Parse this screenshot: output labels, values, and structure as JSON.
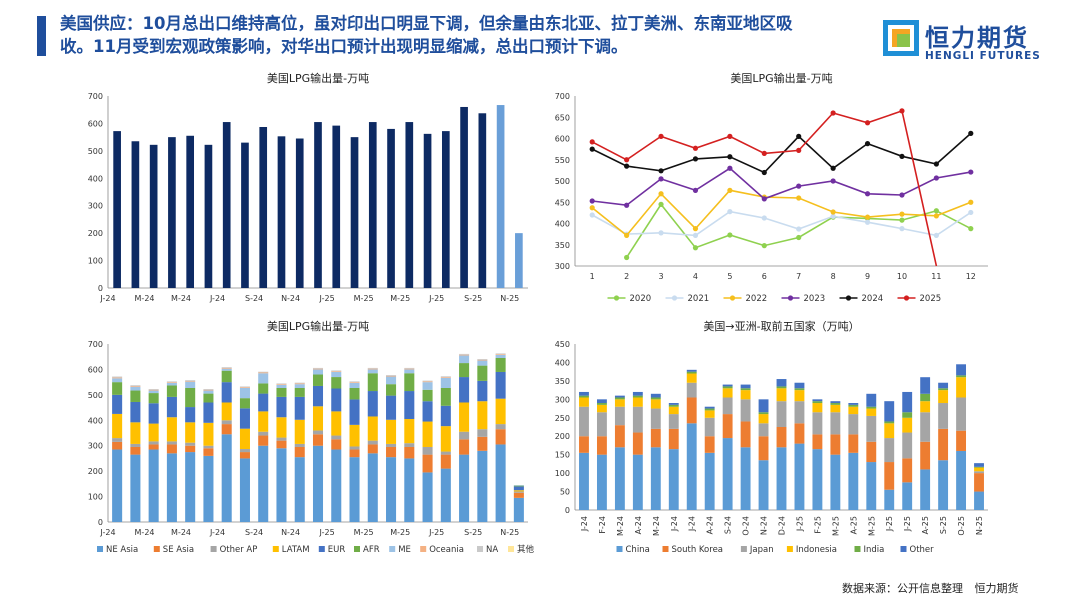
{
  "header": {
    "line1": "美国供应：10月总出口维持高位，虽对印出口明显下调，但余量由东北亚、拉丁美洲、东南亚地区吸",
    "line2": "收。11月受到宏观政策影响，对华出口预计出现明显缩减，总出口预计下调。",
    "logo_cn": "恒力期货",
    "logo_en": "HENGLI FUTURES",
    "brand_color": "#1f4e9c"
  },
  "footer": {
    "source_label": "数据来源：公开信息整理",
    "company": "恒力期货"
  },
  "chart_data": [
    {
      "id": "tl",
      "type": "bar",
      "title": "美国LPG输出量-万吨",
      "ylim": [
        0,
        700
      ],
      "yticks": [
        0,
        100,
        200,
        300,
        400,
        500,
        600,
        700
      ],
      "xtick_labels": [
        "J-24",
        "M-24",
        "M-24",
        "J-24",
        "S-24",
        "N-24",
        "J-25",
        "M-25",
        "M-25",
        "J-25",
        "S-25",
        "N-25"
      ],
      "values": [
        572,
        535,
        522,
        550,
        555,
        522,
        605,
        530,
        587,
        553,
        545,
        605,
        592,
        550,
        605,
        580,
        605,
        562,
        572,
        660,
        637,
        667,
        200
      ],
      "colors": [
        "#0d2a63",
        "#0d2a63",
        "#0d2a63",
        "#0d2a63",
        "#0d2a63",
        "#0d2a63",
        "#0d2a63",
        "#0d2a63",
        "#0d2a63",
        "#0d2a63",
        "#0d2a63",
        "#0d2a63",
        "#0d2a63",
        "#0d2a63",
        "#0d2a63",
        "#0d2a63",
        "#0d2a63",
        "#0d2a63",
        "#0d2a63",
        "#0d2a63",
        "#0d2a63",
        "#6a9fd8",
        "#6a9fd8"
      ]
    },
    {
      "id": "tr",
      "type": "line",
      "title": "美国LPG输出量-万吨",
      "ylim": [
        300,
        700
      ],
      "yticks": [
        300,
        350,
        400,
        450,
        500,
        550,
        600,
        650,
        700
      ],
      "categories": [
        "1",
        "2",
        "3",
        "4",
        "5",
        "6",
        "7",
        "8",
        "9",
        "10",
        "11",
        "12"
      ],
      "series": [
        {
          "name": "2020",
          "color": "#8fd14f",
          "values": [
            null,
            320,
            445,
            343,
            373,
            348,
            367,
            415,
            412,
            408,
            430,
            388
          ]
        },
        {
          "name": "2021",
          "color": "#c9dcef",
          "values": [
            420,
            375,
            378,
            372,
            428,
            413,
            387,
            417,
            403,
            388,
            372,
            426
          ]
        },
        {
          "name": "2022",
          "color": "#f5bf1e",
          "values": [
            437,
            372,
            470,
            388,
            478,
            462,
            460,
            427,
            415,
            422,
            418,
            450
          ]
        },
        {
          "name": "2023",
          "color": "#7030a0",
          "values": [
            453,
            443,
            505,
            478,
            530,
            458,
            488,
            500,
            470,
            467,
            507,
            521
          ]
        },
        {
          "name": "2024",
          "color": "#111111",
          "values": [
            575,
            535,
            524,
            552,
            557,
            520,
            605,
            530,
            588,
            558,
            540,
            612
          ]
        },
        {
          "name": "2025",
          "color": "#d42020",
          "values": [
            592,
            550,
            605,
            577,
            605,
            565,
            572,
            660,
            637,
            665,
            300,
            null
          ]
        }
      ]
    },
    {
      "id": "bl",
      "type": "bar",
      "stacked": true,
      "title": "美国LPG输出量-万吨",
      "ylim": [
        0,
        700
      ],
      "yticks": [
        0,
        100,
        200,
        300,
        400,
        500,
        600,
        700
      ],
      "xtick_labels": [
        "J-24",
        "M-24",
        "M-24",
        "J-24",
        "S-24",
        "N-24",
        "J-25",
        "M-25",
        "M-25",
        "J-25",
        "S-25",
        "N-25"
      ],
      "series": [
        {
          "name": "NE Asia",
          "color": "#5b9bd5",
          "values": [
            285,
            265,
            285,
            270,
            275,
            260,
            345,
            250,
            300,
            290,
            255,
            300,
            285,
            255,
            270,
            255,
            250,
            195,
            210,
            265,
            280,
            305,
            95
          ]
        },
        {
          "name": "SE Asia",
          "color": "#ed7d31",
          "values": [
            30,
            30,
            20,
            35,
            25,
            30,
            40,
            25,
            40,
            30,
            40,
            45,
            40,
            30,
            35,
            40,
            45,
            70,
            55,
            60,
            55,
            60,
            20
          ]
        },
        {
          "name": "Other AP",
          "color": "#a5a5a5",
          "values": [
            15,
            12,
            12,
            12,
            12,
            10,
            15,
            12,
            15,
            12,
            12,
            15,
            15,
            12,
            15,
            12,
            15,
            30,
            12,
            30,
            30,
            20,
            5
          ]
        },
        {
          "name": "LATAM",
          "color": "#ffc000",
          "values": [
            95,
            85,
            70,
            95,
            80,
            90,
            70,
            80,
            80,
            80,
            95,
            95,
            95,
            85,
            95,
            95,
            95,
            100,
            100,
            115,
            110,
            100,
            5
          ]
        },
        {
          "name": "EUR",
          "color": "#4472c4",
          "values": [
            75,
            80,
            80,
            80,
            60,
            80,
            80,
            80,
            70,
            80,
            90,
            80,
            90,
            100,
            100,
            95,
            110,
            80,
            80,
            100,
            80,
            105,
            15
          ]
        },
        {
          "name": "AFR",
          "color": "#70ad47",
          "values": [
            50,
            45,
            40,
            45,
            75,
            35,
            45,
            40,
            40,
            35,
            35,
            45,
            45,
            45,
            70,
            45,
            70,
            45,
            70,
            55,
            60,
            55,
            3
          ]
        },
        {
          "name": "ME",
          "color": "#9dc3e6",
          "values": [
            15,
            15,
            10,
            10,
            25,
            12,
            8,
            40,
            40,
            12,
            15,
            20,
            20,
            20,
            15,
            30,
            15,
            30,
            40,
            30,
            20,
            12,
            2
          ]
        },
        {
          "name": "Oceania",
          "color": "#f4b183",
          "values": [
            3,
            3,
            3,
            3,
            3,
            3,
            3,
            3,
            3,
            3,
            3,
            3,
            3,
            3,
            3,
            3,
            3,
            3,
            3,
            3,
            3,
            3,
            0
          ]
        },
        {
          "name": "NA",
          "color": "#c9c9c9",
          "values": [
            4,
            3,
            3,
            3,
            3,
            3,
            3,
            3,
            3,
            3,
            3,
            3,
            3,
            3,
            3,
            3,
            3,
            3,
            3,
            3,
            3,
            3,
            0
          ]
        },
        {
          "name": "其他",
          "color": "#ffe699",
          "values": [
            0,
            0,
            0,
            0,
            0,
            0,
            0,
            0,
            0,
            0,
            0,
            0,
            0,
            0,
            0,
            0,
            0,
            0,
            0,
            0,
            0,
            0,
            0
          ]
        }
      ]
    },
    {
      "id": "br",
      "type": "bar",
      "stacked": true,
      "title": "美国→亚洲-取前五国家（万吨）",
      "ylim": [
        0,
        450
      ],
      "yticks": [
        0,
        50,
        100,
        150,
        200,
        250,
        300,
        350,
        400,
        450
      ],
      "categories": [
        "J-24",
        "F-24",
        "M-24",
        "A-24",
        "M-24",
        "J-24",
        "J-24",
        "A-24",
        "S-24",
        "O-24",
        "N-24",
        "D-24",
        "J-25",
        "F-25",
        "M-25",
        "A-25",
        "M-25",
        "J-25",
        "J-25",
        "A-25",
        "S-25",
        "O-25",
        "N-25"
      ],
      "series": [
        {
          "name": "China",
          "color": "#5b9bd5",
          "values": [
            155,
            150,
            170,
            150,
            170,
            165,
            235,
            155,
            195,
            170,
            135,
            170,
            180,
            165,
            150,
            155,
            130,
            55,
            75,
            110,
            135,
            160,
            50
          ]
        },
        {
          "name": "South Korea",
          "color": "#ed7d31",
          "values": [
            45,
            50,
            60,
            60,
            50,
            55,
            70,
            45,
            65,
            70,
            65,
            55,
            55,
            40,
            55,
            50,
            55,
            75,
            65,
            75,
            85,
            55,
            50
          ]
        },
        {
          "name": "Japan",
          "color": "#a5a5a5",
          "values": [
            80,
            65,
            50,
            70,
            55,
            40,
            40,
            50,
            45,
            60,
            35,
            70,
            60,
            60,
            60,
            55,
            70,
            65,
            70,
            80,
            70,
            90,
            5
          ]
        },
        {
          "name": "Indonesia",
          "color": "#ffc000",
          "values": [
            25,
            20,
            20,
            25,
            25,
            20,
            25,
            20,
            25,
            25,
            25,
            35,
            30,
            25,
            20,
            20,
            20,
            40,
            40,
            30,
            35,
            55,
            10
          ]
        },
        {
          "name": "India",
          "color": "#70ad47",
          "values": [
            5,
            5,
            5,
            5,
            5,
            5,
            5,
            5,
            5,
            5,
            5,
            5,
            5,
            5,
            5,
            5,
            5,
            5,
            15,
            20,
            5,
            5,
            2
          ]
        },
        {
          "name": "Other",
          "color": "#4472c4",
          "values": [
            10,
            10,
            5,
            10,
            10,
            5,
            5,
            5,
            5,
            10,
            35,
            20,
            15,
            5,
            5,
            5,
            35,
            55,
            55,
            45,
            15,
            30,
            10
          ]
        }
      ]
    }
  ]
}
